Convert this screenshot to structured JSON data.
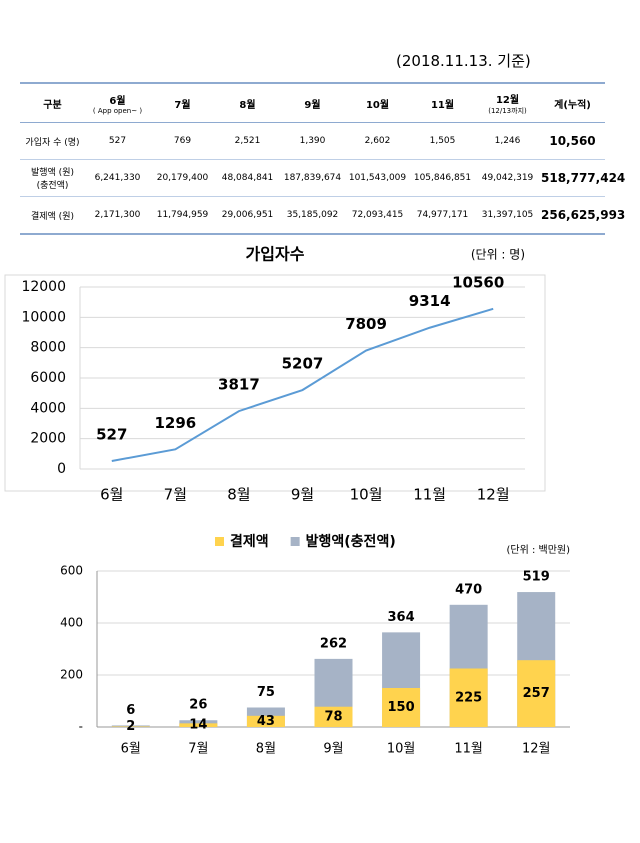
{
  "date_note": "(2018.11.13. 기준)",
  "table": {
    "headers": [
      "구분",
      {
        "label": "6월",
        "note": "( App open~ )"
      },
      "7월",
      "8월",
      "9월",
      "10월",
      "11월",
      {
        "label": "12월",
        "note": "(12/13까지)"
      },
      "계(누적)"
    ],
    "rows": [
      {
        "label": [
          "가입자 수 (명)"
        ],
        "cells": [
          "527",
          "769",
          "2,521",
          "1,390",
          "2,602",
          "1,505",
          "1,246",
          "10,560"
        ]
      },
      {
        "label": [
          "발행액 (원)",
          "(충전액)"
        ],
        "cells": [
          "6,241,330",
          "20,179,400",
          "48,084,841",
          "187,839,674",
          "101,543,009",
          "105,846,851",
          "49,042,319",
          "518,777,424"
        ]
      },
      {
        "label": [
          "결제액 (원)"
        ],
        "cells": [
          "2,171,300",
          "11,794,959",
          "29,006,951",
          "35,185,092",
          "72,093,415",
          "74,977,171",
          "31,397,105",
          "256,625,993"
        ]
      }
    ]
  },
  "chart_data": [
    {
      "type": "line",
      "title": "가입자수",
      "unit": "(단위 : 명)",
      "categories": [
        "6월",
        "7월",
        "8월",
        "9월",
        "10월",
        "11월",
        "12월"
      ],
      "series": [
        {
          "name": "가입자수",
          "color": "#5b9bd5",
          "values": [
            527,
            1296,
            3817,
            5207,
            7809,
            9314,
            10560
          ]
        }
      ],
      "ylim": [
        0,
        12000
      ],
      "yticks": [
        0,
        2000,
        4000,
        6000,
        8000,
        10000,
        12000
      ],
      "grid": true
    },
    {
      "type": "bar",
      "unit": "(단위 : 백만원)",
      "categories": [
        "6월",
        "7월",
        "8월",
        "9월",
        "10월",
        "11월",
        "12월"
      ],
      "series": [
        {
          "name": "결제액",
          "color": "#ffd34e",
          "values": [
            2,
            14,
            43,
            78,
            150,
            225,
            257
          ]
        },
        {
          "name": "발행액(충전액)",
          "color": "#a6b3c6",
          "values": [
            6,
            26,
            75,
            262,
            364,
            470,
            519
          ]
        }
      ],
      "ylim": [
        0,
        600
      ],
      "yticks": [
        {
          "value": 0,
          "label": "-"
        },
        200,
        400,
        600
      ],
      "grid": true
    }
  ]
}
